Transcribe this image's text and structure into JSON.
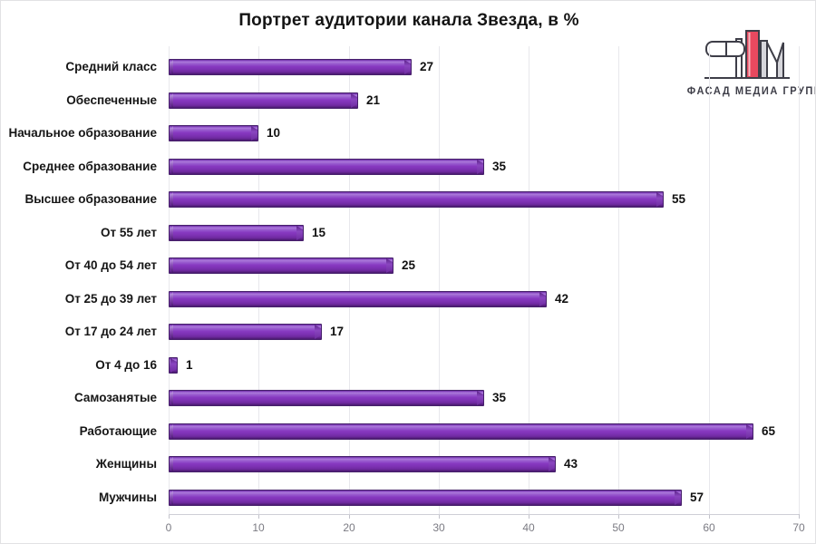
{
  "title": "Портрет аудитории канала Звезда, в %",
  "logo": {
    "text": "ФАСАД МЕДИА ГРУПП",
    "accent_color": "#e8495f",
    "outline_color": "#3e3e48",
    "gray_color": "#d6d6db"
  },
  "chart_data": {
    "type": "bar",
    "orientation": "horizontal",
    "title": "Портрет аудитории канала Звезда, в %",
    "categories": [
      "Средний класс",
      "Обеспеченные",
      "Начальное образование",
      "Среднее образование",
      "Высшее образование",
      "От 55 лет",
      "От 40 до 54 лет",
      "От 25 до 39 лет",
      "От 17 до 24 лет",
      "От 4 до 16",
      "Самозанятые",
      "Работающие",
      "Женщины",
      "Мужчины"
    ],
    "values": [
      27,
      21,
      10,
      35,
      55,
      15,
      25,
      42,
      17,
      1,
      35,
      65,
      43,
      57
    ],
    "xlim": [
      0,
      70
    ],
    "x_ticks": [
      0,
      10,
      20,
      30,
      40,
      50,
      60,
      70
    ],
    "grid": true,
    "legend": false,
    "data_labels": true,
    "bar_color": "#8136bd",
    "bar_highlight": "#a06fd6",
    "bar_outline": "#4a2170",
    "gridline_color": "#e8e8ec",
    "tick_label_color": "#7b7b83"
  }
}
